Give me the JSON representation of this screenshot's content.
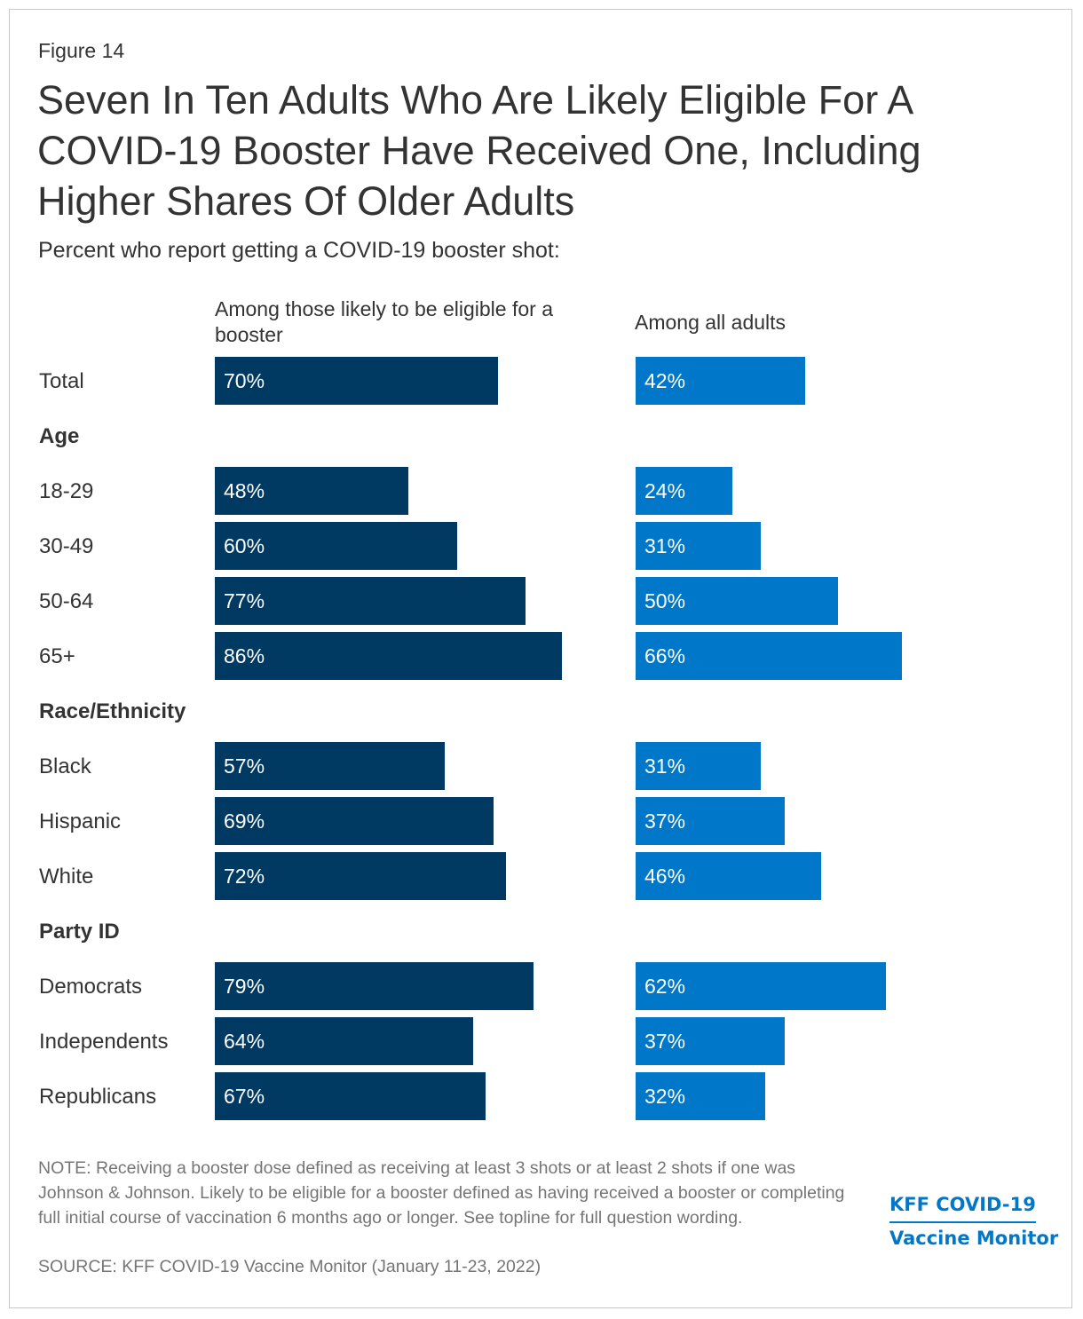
{
  "figure_label": "Figure 14",
  "title": "Seven In Ten Adults Who Are Likely Eligible For A COVID-19 Booster Have Received One, Including Higher Shares Of Older Adults",
  "subtitle": "Percent who report getting a COVID-19 booster shot:",
  "note": "NOTE: Receiving a booster dose defined as receiving at least 3 shots or at least 2 shots if one was Johnson & Johnson. Likely to be eligible for a booster defined as having received a booster or completing full initial course of vaccination 6 months ago or longer. See topline for full question wording.",
  "source": "SOURCE: KFF COVID-19 Vaccine Monitor (January 11-23, 2022)",
  "logo": {
    "line1": "KFF COVID-19",
    "line2": "Vaccine Monitor"
  },
  "colors": {
    "series1": "#003a63",
    "series2": "#0077c8"
  },
  "chart_data": {
    "type": "bar",
    "orientation": "horizontal",
    "title": "Seven In Ten Adults Who Are Likely Eligible For A COVID-19 Booster Have Received One, Including Higher Shares Of Older Adults",
    "unit": "%",
    "xlim": [
      0,
      100
    ],
    "rows": [
      {
        "kind": "category",
        "label": "Total"
      },
      {
        "kind": "group",
        "label": "Age"
      },
      {
        "kind": "category",
        "label": "18-29"
      },
      {
        "kind": "category",
        "label": "30-49"
      },
      {
        "kind": "category",
        "label": "50-64"
      },
      {
        "kind": "category",
        "label": "65+"
      },
      {
        "kind": "group",
        "label": "Race/Ethnicity"
      },
      {
        "kind": "category",
        "label": "Black"
      },
      {
        "kind": "category",
        "label": "Hispanic"
      },
      {
        "kind": "category",
        "label": "White"
      },
      {
        "kind": "group",
        "label": "Party ID"
      },
      {
        "kind": "category",
        "label": "Democrats"
      },
      {
        "kind": "category",
        "label": "Independents"
      },
      {
        "kind": "category",
        "label": "Republicans"
      }
    ],
    "series": [
      {
        "name": "Among those likely to be eligible for a booster",
        "values": [
          70,
          48,
          60,
          77,
          86,
          57,
          69,
          72,
          79,
          64,
          67
        ]
      },
      {
        "name": "Among all adults",
        "values": [
          42,
          24,
          31,
          50,
          66,
          31,
          37,
          46,
          62,
          37,
          32
        ]
      }
    ]
  }
}
